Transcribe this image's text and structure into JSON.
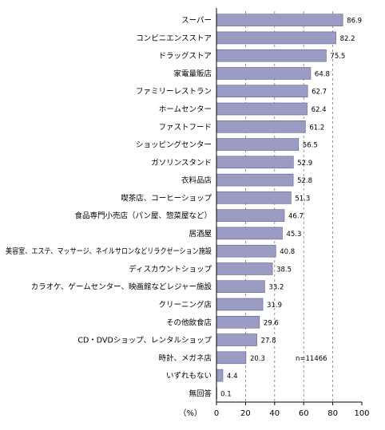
{
  "chart_data": {
    "type": "bar",
    "orientation": "horizontal",
    "categories": [
      "スーパー",
      "コンビニエンスストア",
      "ドラッグストア",
      "家電量販店",
      "ファミリーレストラン",
      "ホームセンター",
      "ファストフード",
      "ショッピングセンター",
      "ガソリンスタンド",
      "衣料品店",
      "喫茶店、コーヒーショップ",
      "食品専門小売店（パン屋、惣菜屋など）",
      "居酒屋",
      "美容室、エステ、マッサージ、ネイルサロンなどリラクゼーション施設",
      "ディスカウントショップ",
      "カラオケ、ゲームセンター、映画館などレジャー施設",
      "クリーニング店",
      "その他飲食店",
      "CD・DVDショップ、レンタルショップ",
      "時計、メガネ店",
      "いずれもない",
      "無回答"
    ],
    "values": [
      86.9,
      82.2,
      75.5,
      64.8,
      62.7,
      62.4,
      61.2,
      56.5,
      52.9,
      52.8,
      51.3,
      46.7,
      45.3,
      40.8,
      38.5,
      33.2,
      31.9,
      29.6,
      27.8,
      20.3,
      4.4,
      0.1
    ],
    "value_labels": [
      "86.9",
      "82.2",
      "75.5",
      "64.8",
      "62.7",
      "62.4",
      "61.2",
      "56.5",
      "52.9",
      "52.8",
      "51.3",
      "46.7",
      "45.3",
      "40.8",
      "38.5",
      "33.2",
      "31.9",
      "29.6",
      "27.8",
      "20.3",
      "4.4",
      "0.1"
    ],
    "xlim": [
      0,
      100
    ],
    "xticks": [
      "0",
      "20",
      "40",
      "60",
      "80",
      "100"
    ],
    "unit_label": "（%）",
    "annotation": "n=11466",
    "grid": "vertical dashed",
    "bar_color": "#9a9cc4",
    "bar_edge_color": "#5f6290"
  }
}
